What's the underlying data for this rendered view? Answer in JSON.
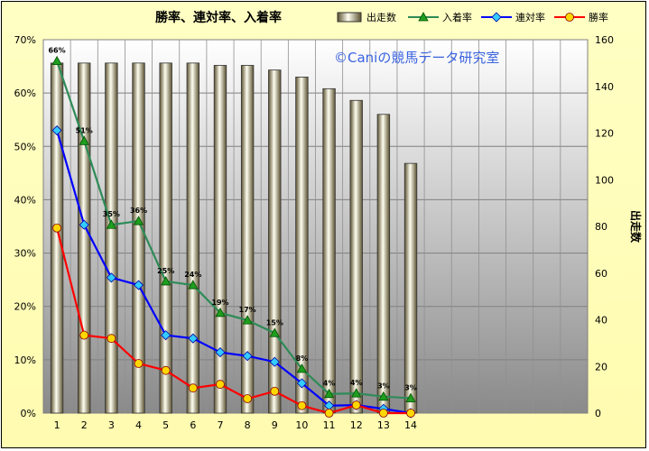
{
  "chart_data": {
    "type": "bar",
    "title": "勝率、連対率、入着率",
    "watermark": "©Caniの競馬データ研究室",
    "categories": [
      "1",
      "2",
      "3",
      "4",
      "5",
      "6",
      "7",
      "8",
      "9",
      "10",
      "11",
      "12",
      "13",
      "14"
    ],
    "bar_series": {
      "name": "出走数",
      "axis": "right",
      "values": [
        150,
        150,
        150,
        150,
        150,
        150,
        149,
        149,
        147,
        144,
        139,
        134,
        128,
        107
      ]
    },
    "line_series": [
      {
        "name": "入着率",
        "color": "#2e8b57",
        "marker": "triangle",
        "marker_fill": "#1f9e1f",
        "values": [
          66,
          51,
          35.3,
          36,
          24.7,
          24,
          18.8,
          17.4,
          15,
          8.3,
          3.6,
          3.7,
          3.1,
          2.8
        ],
        "labels": [
          "66%",
          "51%",
          "35%",
          "36%",
          "25%",
          "24%",
          "19%",
          "17%",
          "15%",
          "8%",
          "4%",
          "4%",
          "3%",
          "3%"
        ]
      },
      {
        "name": "連対率",
        "color": "#0000ff",
        "marker": "diamond",
        "marker_fill": "#33ccff",
        "values": [
          53,
          35.3,
          25.4,
          24,
          14.6,
          14,
          11.4,
          10.7,
          9.6,
          5.6,
          1.4,
          1.5,
          0.8,
          0
        ]
      },
      {
        "name": "勝率",
        "color": "#ff0000",
        "marker": "circle",
        "marker_fill": "#ffd700",
        "values": [
          34.7,
          14.6,
          14,
          9.3,
          8,
          4.7,
          5.4,
          2.7,
          4.1,
          1.4,
          0,
          1.5,
          0,
          0
        ]
      }
    ],
    "y_left": {
      "ylim": [
        0,
        70
      ],
      "ticks": [
        "0%",
        "10%",
        "20%",
        "30%",
        "40%",
        "50%",
        "60%",
        "70%"
      ]
    },
    "y_right": {
      "label": "出走数",
      "ylim": [
        0,
        160
      ],
      "ticks": [
        "0",
        "20",
        "40",
        "60",
        "80",
        "100",
        "120",
        "140",
        "160"
      ]
    },
    "legend": [
      {
        "name": "出走数",
        "kind": "bar"
      },
      {
        "name": "入着率",
        "kind": "line",
        "color": "#2e8b57",
        "marker": "triangle",
        "marker_fill": "#1f9e1f"
      },
      {
        "name": "連対率",
        "kind": "line",
        "color": "#0000ff",
        "marker": "diamond",
        "marker_fill": "#33ccff"
      },
      {
        "name": "勝率",
        "kind": "line",
        "color": "#ff0000",
        "marker": "circle",
        "marker_fill": "#ffd700"
      }
    ],
    "legend_position": "top",
    "grid": true,
    "colors": {
      "plot_top": "#ffffff",
      "plot_bottom": "#8a8a8a",
      "bar_dark": "#5a5030",
      "bar_light": "#fffff0"
    }
  }
}
